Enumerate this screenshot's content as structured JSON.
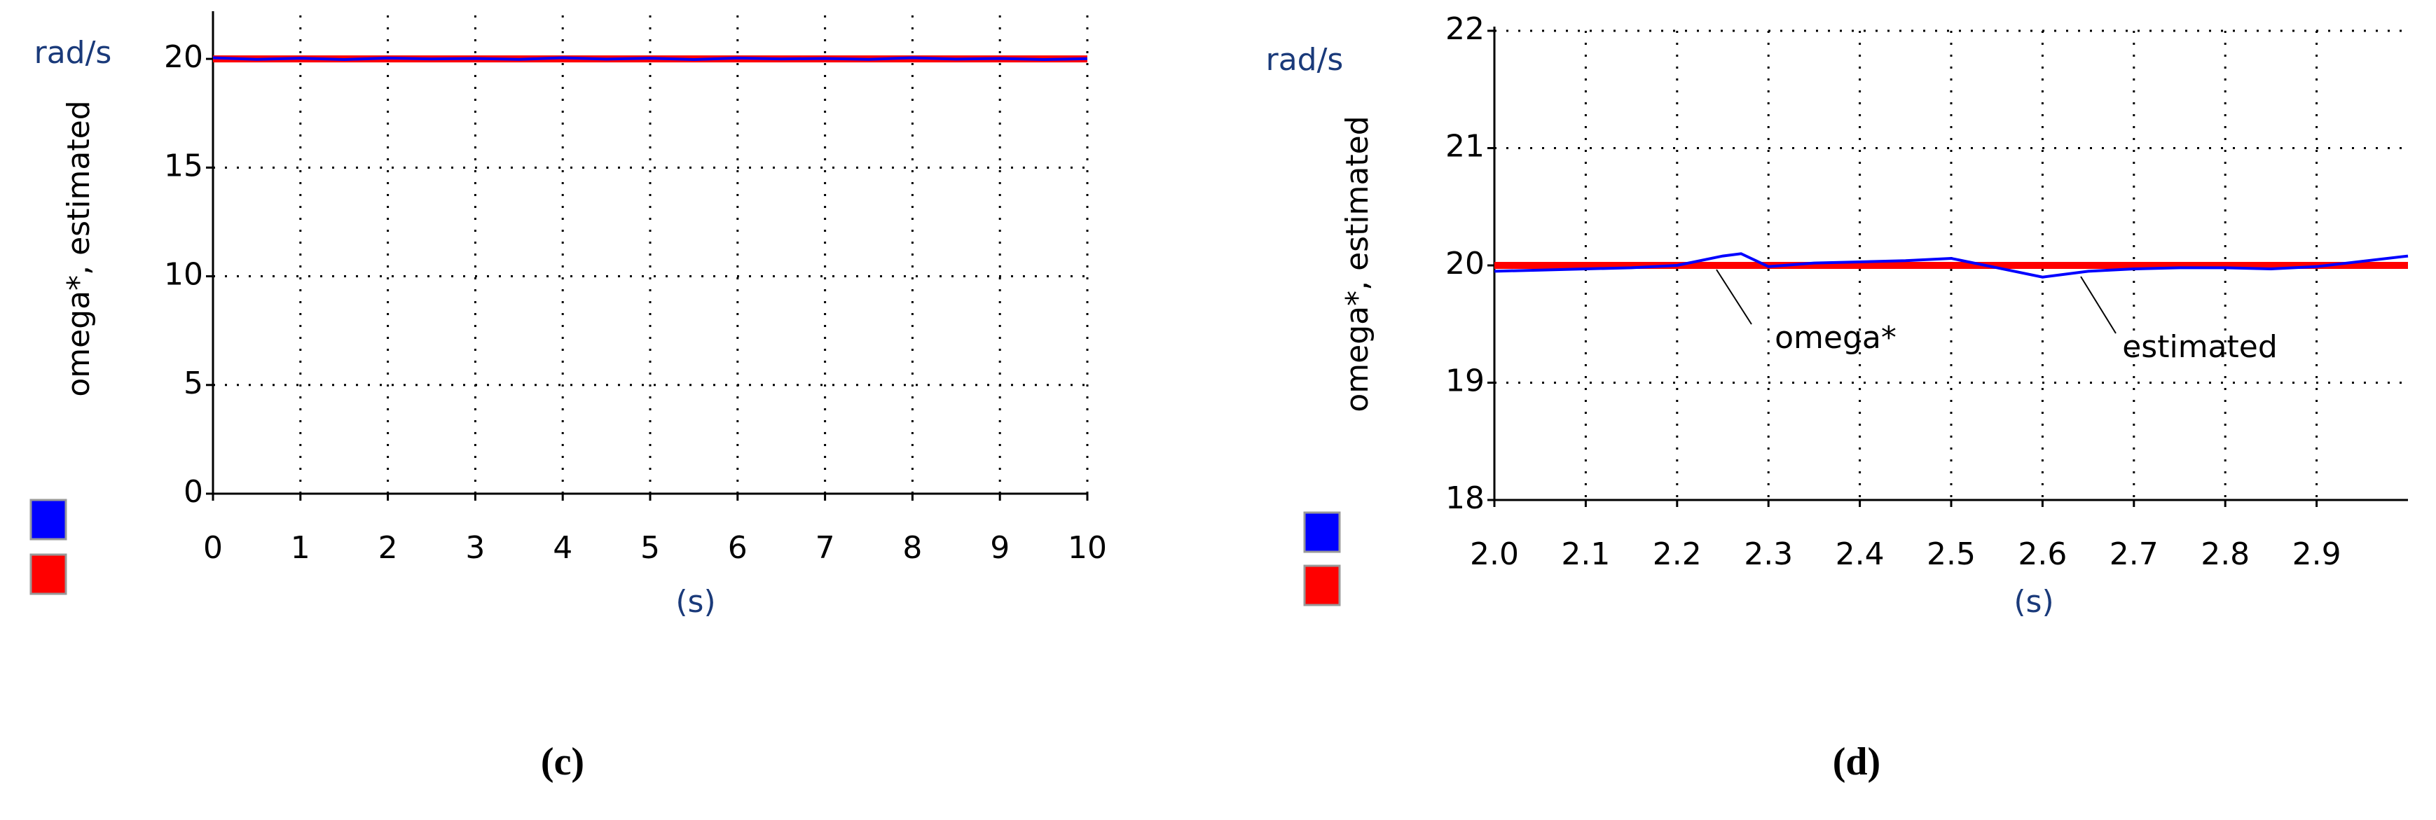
{
  "chart_data": [
    {
      "type": "line",
      "caption": "(c)",
      "ylabel": "omega*, estimated",
      "yunit": "rad/s",
      "xlabel": "(s)",
      "x": [
        0,
        0.5,
        1,
        1.5,
        2,
        2.5,
        3,
        3.5,
        4,
        4.5,
        5,
        5.5,
        6,
        6.5,
        7,
        7.5,
        8,
        8.5,
        9,
        9.5,
        10
      ],
      "series": [
        {
          "color": "#0000ff",
          "values": [
            20.05,
            19.98,
            20.03,
            19.97,
            20.04,
            20.0,
            20.02,
            19.98,
            20.05,
            19.99,
            20.03,
            19.97,
            20.04,
            20.0,
            20.02,
            19.98,
            20.05,
            19.99,
            20.02,
            19.97,
            20.01
          ]
        },
        {
          "color": "#ff0000",
          "values": [
            20,
            20,
            20,
            20,
            20,
            20,
            20,
            20,
            20,
            20,
            20,
            20,
            20,
            20,
            20,
            20,
            20,
            20,
            20,
            20,
            20
          ]
        }
      ],
      "xlim": [
        0,
        10
      ],
      "xticks": [
        0,
        1,
        2,
        3,
        4,
        5,
        6,
        7,
        8,
        9,
        10
      ],
      "ylim": [
        0,
        22
      ],
      "yticks": [
        0,
        5,
        10,
        15,
        20
      ],
      "grid": true
    },
    {
      "type": "line",
      "caption": "(d)",
      "ylabel": "omega*, estimated",
      "yunit": "rad/s",
      "xlabel": "(s)",
      "x": [
        2.0,
        2.05,
        2.1,
        2.15,
        2.2,
        2.25,
        2.27,
        2.3,
        2.35,
        2.4,
        2.45,
        2.5,
        2.55,
        2.6,
        2.65,
        2.7,
        2.75,
        2.8,
        2.85,
        2.9,
        3.0
      ],
      "series": [
        {
          "color": "#0000ff",
          "values": [
            19.95,
            19.96,
            19.97,
            19.98,
            20.0,
            20.08,
            20.1,
            19.99,
            20.02,
            20.03,
            20.04,
            20.06,
            19.98,
            19.9,
            19.95,
            19.97,
            19.98,
            19.98,
            19.97,
            19.99,
            20.08
          ]
        },
        {
          "color": "#ff0000",
          "values": [
            20,
            20,
            20,
            20,
            20,
            20,
            20,
            20,
            20,
            20,
            20,
            20,
            20,
            20,
            20,
            20,
            20,
            20,
            20,
            20,
            20
          ]
        }
      ],
      "annotations": [
        "omega*",
        "estimated"
      ],
      "xlim": [
        2.0,
        3.0
      ],
      "xticks": [
        {
          "value": 2.0,
          "label": "2.0"
        },
        2.1,
        2.2,
        2.3,
        2.4,
        2.5,
        2.6,
        2.7,
        2.8,
        2.9
      ],
      "ylim": [
        18,
        22
      ],
      "yticks": [
        18,
        19,
        20,
        21,
        22
      ],
      "grid": true
    }
  ]
}
